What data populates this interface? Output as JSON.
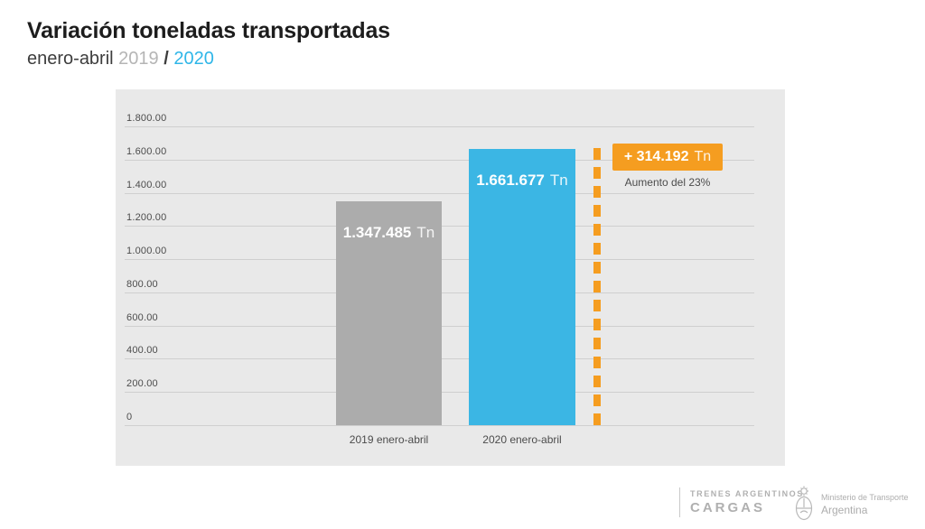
{
  "header": {
    "title": "Variación toneladas transportadas",
    "subtitle_prefix": "enero-abril",
    "year_2019": "2019",
    "separator": "/",
    "year_2020": "2020"
  },
  "chart_data": {
    "type": "bar",
    "title": "Variación toneladas transportadas",
    "subtitle": "enero-abril 2019 / 2020",
    "categories": [
      "2019 enero-abril",
      "2020 enero-abril"
    ],
    "values": [
      1347485,
      1661677
    ],
    "bar_labels": [
      {
        "value": "1.347.485",
        "unit": "Tn"
      },
      {
        "value": "1.661.677",
        "unit": "Tn"
      }
    ],
    "series_colors": [
      "#acacac",
      "#3bb6e4"
    ],
    "ylim": [
      0,
      1800000
    ],
    "y_ticks": [
      "1.800.00",
      "1.600.00",
      "1.400.00",
      "1.200.00",
      "1.000.00",
      "800.00",
      "600.00",
      "400.00",
      "200.00",
      "0"
    ],
    "y_tick_values": [
      1800000,
      1600000,
      1400000,
      1200000,
      1000000,
      800000,
      600000,
      400000,
      200000,
      0
    ],
    "grid": true,
    "legend": false,
    "xlabel": "",
    "ylabel": "",
    "annotation": {
      "difference_value": 314192,
      "badge_text": "+ 314.192",
      "badge_unit": "Tn",
      "caption": "Aumento del 23%",
      "color": "#f59d20"
    }
  },
  "footer": {
    "brand_line1": "TRENES ARGENTINOS",
    "brand_line2": "CARGAS",
    "ministry_line1": "Ministerio de Transporte",
    "ministry_line2": "Argentina"
  },
  "colors": {
    "background": "#ffffff",
    "panel": "#e9e9e9",
    "gridline": "#cfcfcf",
    "bar_2019": "#acacac",
    "bar_2020": "#3bb6e4",
    "accent_orange": "#f59d20",
    "accent_blue": "#2fb6e8",
    "title_text": "#1d1d1d",
    "muted_text": "#4c4c4c",
    "year_2019_text": "#b5b5b5",
    "footer_text": "#b0b0b0"
  }
}
